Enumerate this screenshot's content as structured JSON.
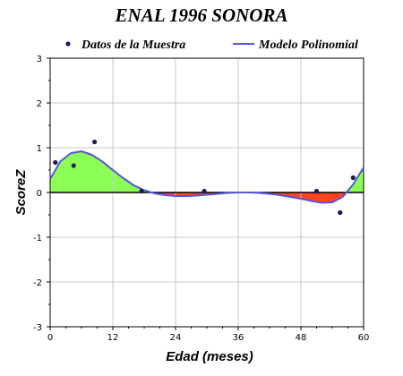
{
  "chart_data": {
    "type": "line",
    "title": "ENAL 1996 SONORA",
    "xlabel": "Edad (meses)",
    "ylabel": "ScoreZ",
    "xlim": [
      0,
      60
    ],
    "ylim": [
      -3,
      3
    ],
    "xticks": [
      0,
      12,
      24,
      36,
      48,
      60
    ],
    "yticks": [
      -3,
      -2,
      -1,
      0,
      1,
      2,
      3
    ],
    "grid": true,
    "legend_position": "top",
    "series": [
      {
        "name": "Datos de la Muestra",
        "kind": "scatter",
        "color": "#1a1a5c",
        "points": [
          [
            1,
            0.67
          ],
          [
            4.5,
            0.6
          ],
          [
            8.5,
            1.13
          ],
          [
            17.5,
            0.03
          ],
          [
            29.5,
            0.03
          ],
          [
            51,
            0.03
          ],
          [
            55.5,
            -0.45
          ],
          [
            58,
            0.33
          ]
        ]
      },
      {
        "name": "Modelo Polinomial",
        "kind": "line",
        "color": "#5555dd",
        "points": [
          [
            0,
            0.3
          ],
          [
            2,
            0.7
          ],
          [
            4,
            0.88
          ],
          [
            6,
            0.92
          ],
          [
            8,
            0.84
          ],
          [
            10,
            0.69
          ],
          [
            12,
            0.5
          ],
          [
            14,
            0.32
          ],
          [
            16,
            0.16
          ],
          [
            18,
            0.05
          ],
          [
            20,
            -0.02
          ],
          [
            22,
            -0.06
          ],
          [
            24,
            -0.08
          ],
          [
            26,
            -0.08
          ],
          [
            28,
            -0.07
          ],
          [
            30,
            -0.05
          ],
          [
            32,
            -0.03
          ],
          [
            34,
            -0.01
          ],
          [
            36,
            0.0
          ],
          [
            38,
            0.0
          ],
          [
            40,
            -0.01
          ],
          [
            42,
            -0.03
          ],
          [
            44,
            -0.06
          ],
          [
            46,
            -0.1
          ],
          [
            48,
            -0.14
          ],
          [
            50,
            -0.19
          ],
          [
            52,
            -0.23
          ],
          [
            54,
            -0.22
          ],
          [
            56,
            -0.1
          ],
          [
            58,
            0.18
          ],
          [
            60,
            0.56
          ]
        ]
      }
    ],
    "fill_colors": {
      "positive": "#8cff55",
      "negative": "#ff4422"
    }
  }
}
